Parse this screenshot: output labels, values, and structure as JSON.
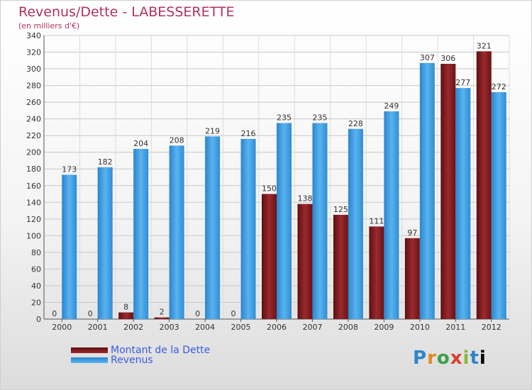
{
  "header": {
    "title": "Revenus/Dette - LABESSERETTE",
    "subtitle": "(en milliers d'€)"
  },
  "legend": {
    "items": [
      {
        "label": "Montant de la Dette",
        "color": "#8b1a1a"
      },
      {
        "label": "Revenus",
        "color": "#3b9de0"
      }
    ]
  },
  "logo": {
    "text": "Proxiti"
  },
  "chart_data": {
    "type": "bar",
    "title": "Revenus/Dette - LABESSERETTE",
    "subtitle": "(en milliers d'€)",
    "xlabel": "",
    "ylabel": "",
    "categories": [
      "2000",
      "2001",
      "2002",
      "2003",
      "2004",
      "2005",
      "2006",
      "2007",
      "2008",
      "2009",
      "2010",
      "2011",
      "2012"
    ],
    "series": [
      {
        "name": "Montant de la Dette",
        "color": "#8b1a1a",
        "values": [
          0,
          0,
          8,
          2,
          0,
          0,
          150,
          138,
          125,
          111,
          97,
          306,
          321
        ]
      },
      {
        "name": "Revenus",
        "color": "#3b9de0",
        "values": [
          173,
          182,
          204,
          208,
          219,
          216,
          235,
          235,
          228,
          249,
          307,
          277,
          272
        ]
      }
    ],
    "ylim": [
      0,
      340
    ],
    "yticks": [
      0,
      20,
      40,
      60,
      80,
      100,
      120,
      140,
      160,
      180,
      200,
      220,
      240,
      260,
      280,
      300,
      320,
      340
    ],
    "grid": true,
    "legend_position": "bottom-left"
  }
}
